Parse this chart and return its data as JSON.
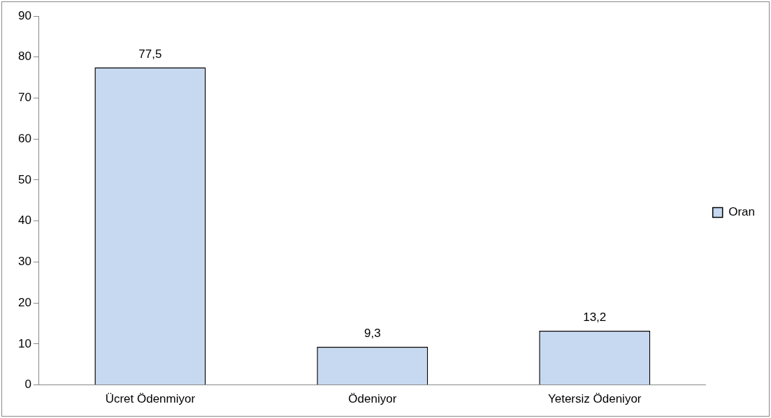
{
  "chart_data": {
    "type": "bar",
    "categories": [
      "Ücret Ödenmiyor",
      "Ödeniyor",
      "Yetersiz Ödeniyor"
    ],
    "series": [
      {
        "name": "Oran",
        "color": "#c6d9f1",
        "values": [
          77.5,
          9.3,
          13.2
        ],
        "value_labels": [
          "77,5",
          "9,3",
          "13,2"
        ]
      }
    ],
    "ylim": [
      0,
      90
    ],
    "yticks": [
      0,
      10,
      20,
      30,
      40,
      50,
      60,
      70,
      80,
      90
    ],
    "grid": false,
    "legend": "right"
  }
}
